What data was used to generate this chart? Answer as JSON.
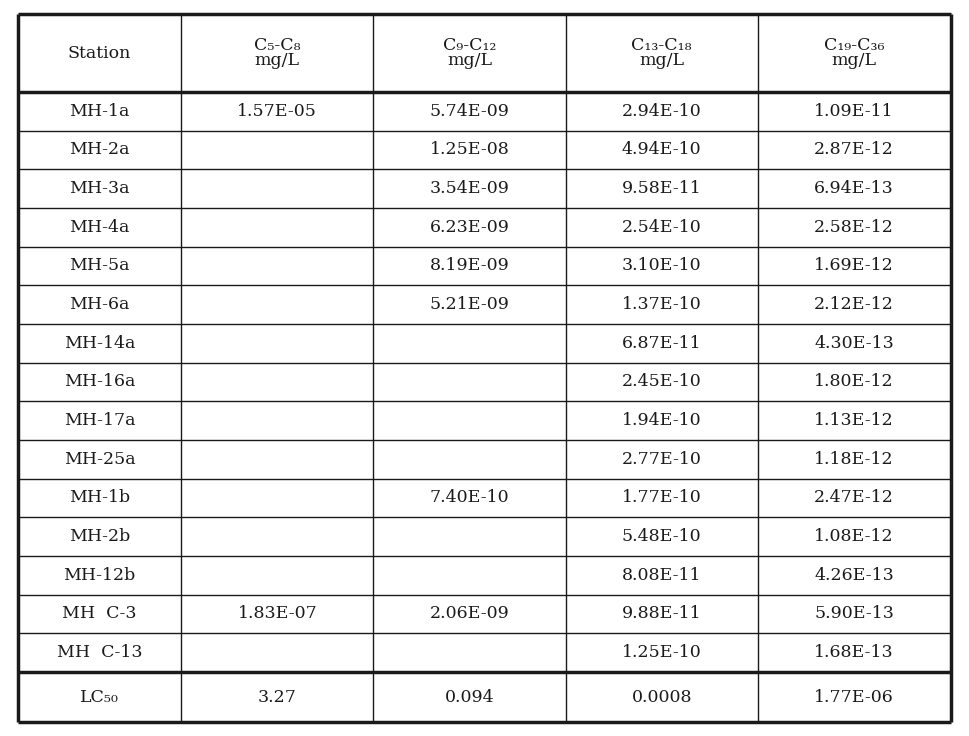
{
  "col_headers_line1": [
    "Station",
    "C₅-C₈",
    "C₉-C₁₂",
    "C₁₃-C₁₈",
    "C₁₉-C₃₆"
  ],
  "col_headers_line2": [
    "",
    "mg/L",
    "mg/L",
    "mg/L",
    "mg/L"
  ],
  "rows": [
    [
      "MH-1a",
      "1.57E-05",
      "5.74E-09",
      "2.94E-10",
      "1.09E-11"
    ],
    [
      "MH-2a",
      "",
      "1.25E-08",
      "4.94E-10",
      "2.87E-12"
    ],
    [
      "MH-3a",
      "",
      "3.54E-09",
      "9.58E-11",
      "6.94E-13"
    ],
    [
      "MH-4a",
      "",
      "6.23E-09",
      "2.54E-10",
      "2.58E-12"
    ],
    [
      "MH-5a",
      "",
      "8.19E-09",
      "3.10E-10",
      "1.69E-12"
    ],
    [
      "MH-6a",
      "",
      "5.21E-09",
      "1.37E-10",
      "2.12E-12"
    ],
    [
      "MH-14a",
      "",
      "",
      "6.87E-11",
      "4.30E-13"
    ],
    [
      "MH-16a",
      "",
      "",
      "2.45E-10",
      "1.80E-12"
    ],
    [
      "MH-17a",
      "",
      "",
      "1.94E-10",
      "1.13E-12"
    ],
    [
      "MH-25a",
      "",
      "",
      "2.77E-10",
      "1.18E-12"
    ],
    [
      "MH-1b",
      "",
      "7.40E-10",
      "1.77E-10",
      "2.47E-12"
    ],
    [
      "MH-2b",
      "",
      "",
      "5.48E-10",
      "1.08E-12"
    ],
    [
      "MH-12b",
      "",
      "",
      "8.08E-11",
      "4.26E-13"
    ],
    [
      "MH  C-3",
      "1.83E-07",
      "2.06E-09",
      "9.88E-11",
      "5.90E-13"
    ],
    [
      "MH  C-13",
      "",
      "",
      "1.25E-10",
      "1.68E-13"
    ]
  ],
  "lc50_row": [
    "LC₅₀",
    "3.27",
    "0.094",
    "0.0008",
    "1.77E-06"
  ],
  "background_color": "#ffffff",
  "border_color": "#1a1a1a",
  "text_color": "#1a1a1a",
  "font_size": 12.5,
  "header_font_size": 12.5,
  "col_props": [
    0.175,
    0.206,
    0.206,
    0.206,
    0.206
  ]
}
